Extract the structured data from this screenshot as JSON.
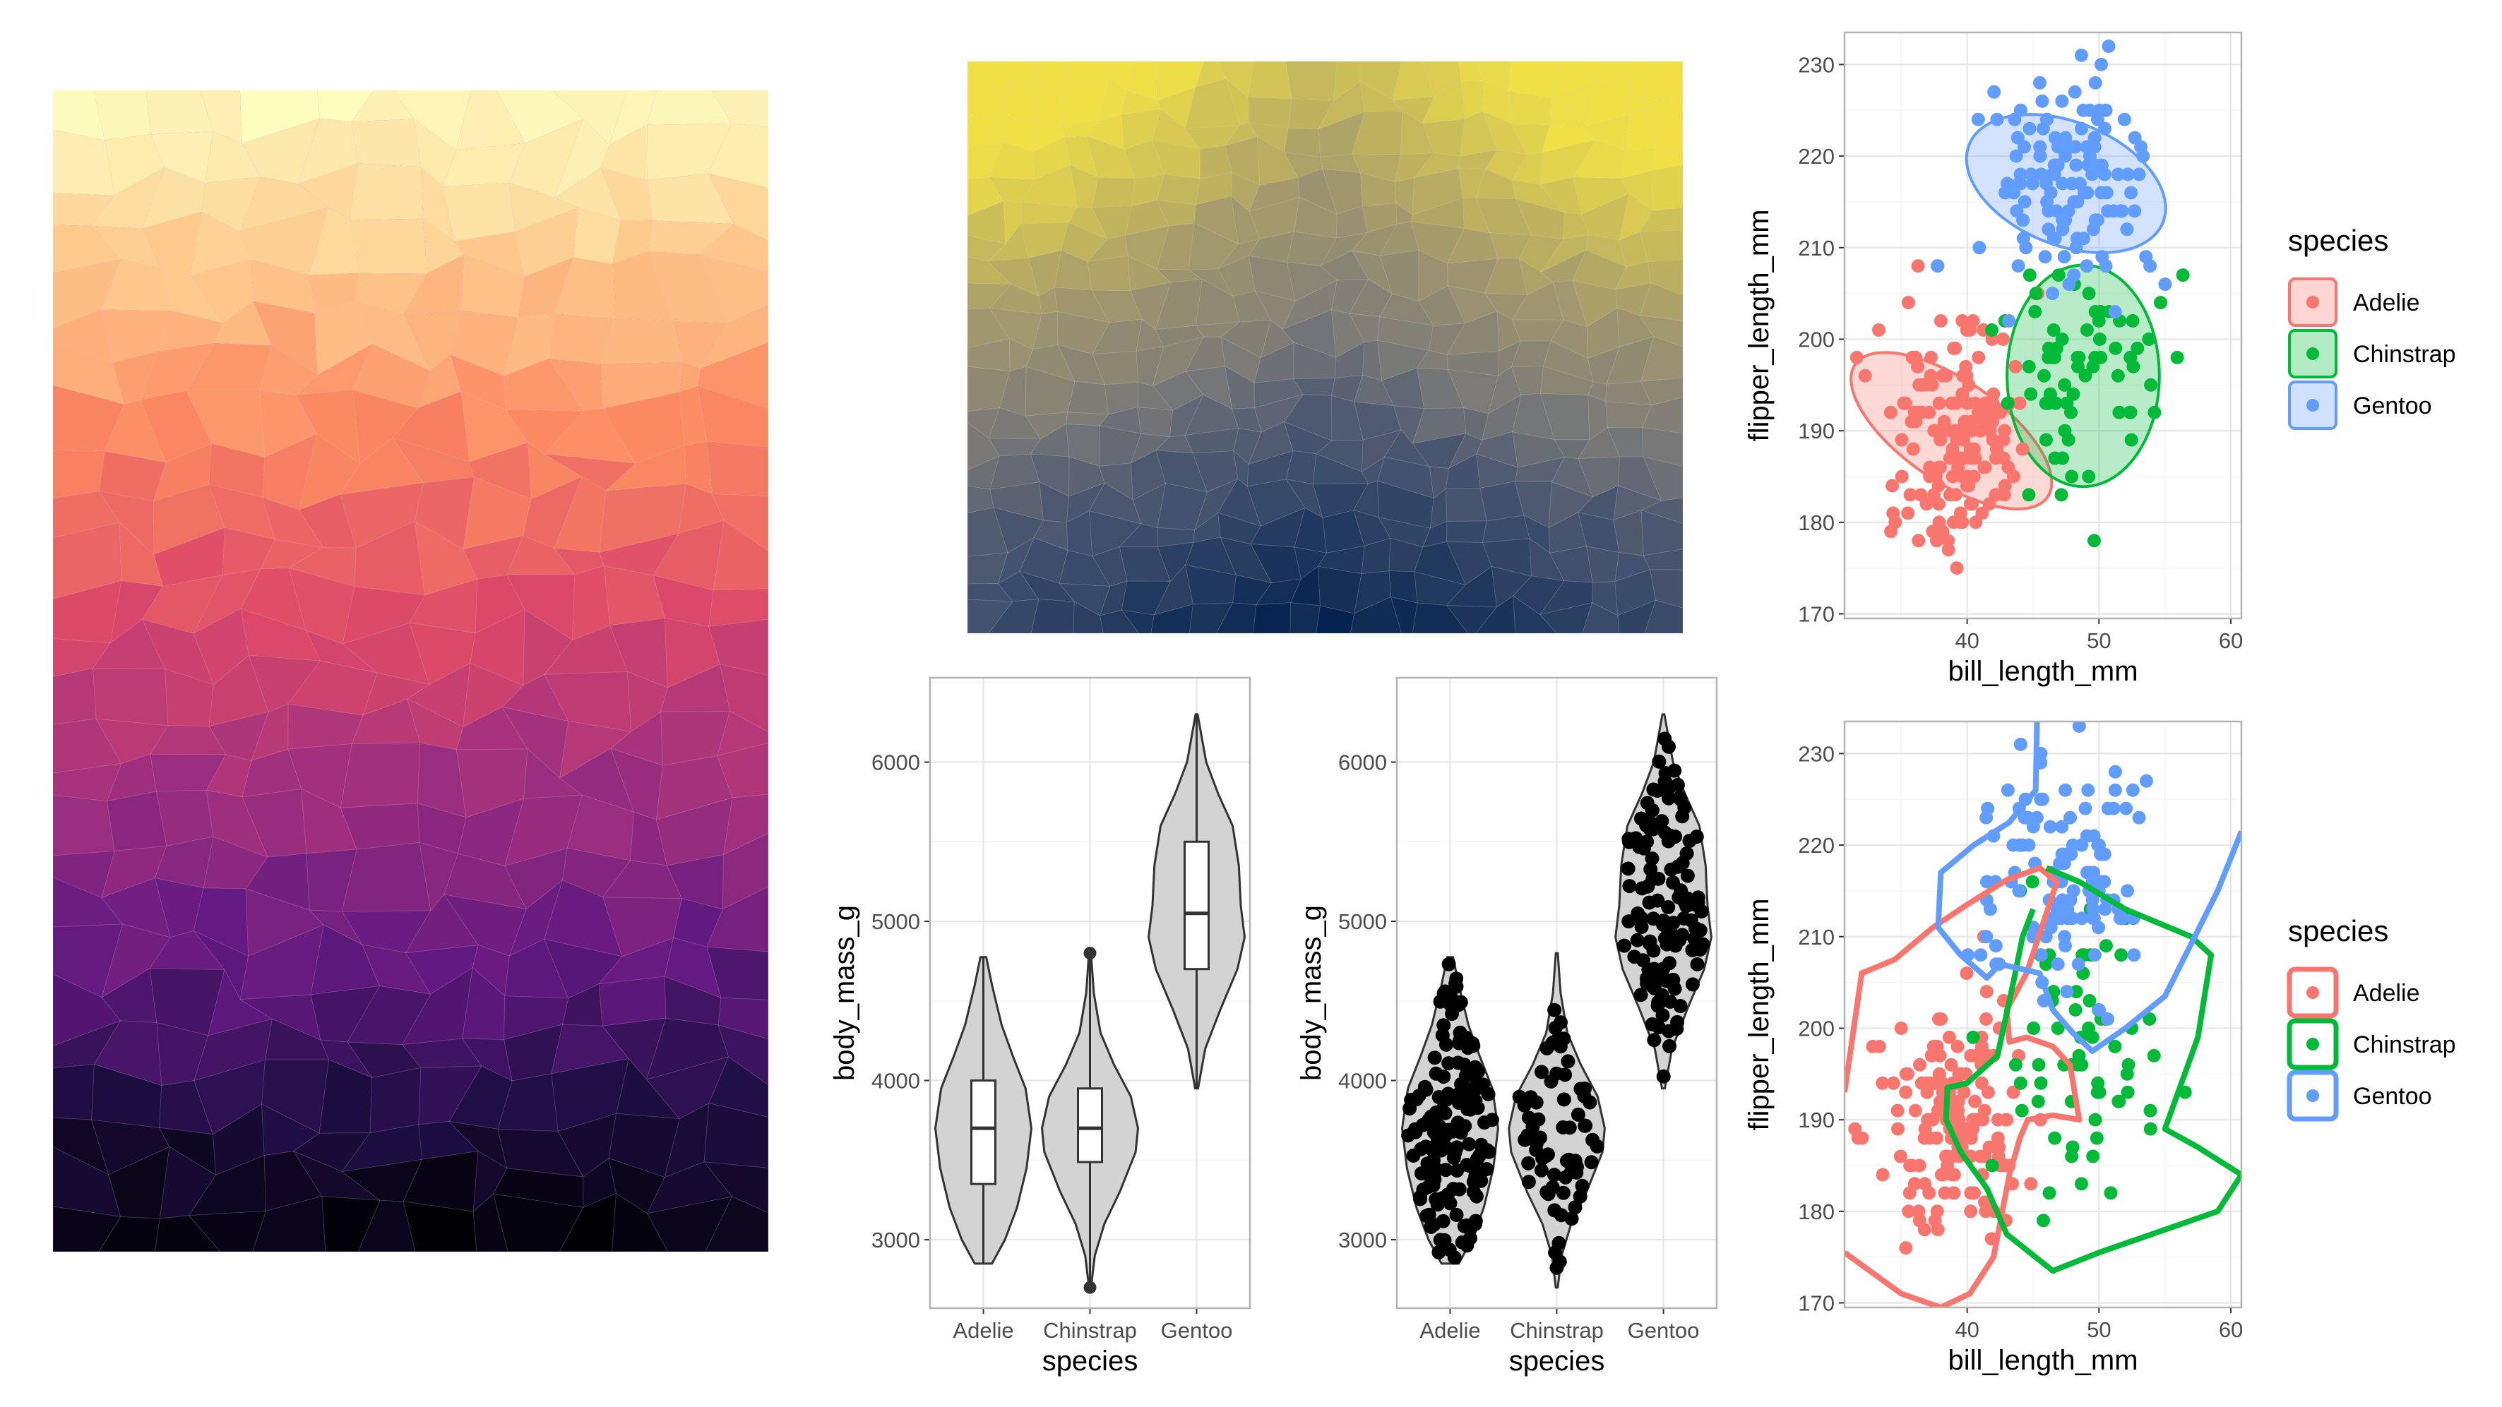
{
  "colors": {
    "adelie": "#F8766D",
    "chinstrap": "#00BA38",
    "gentoo": "#619CFF",
    "panel_border": "#B3B3B3",
    "grid_major": "#E6E6E6",
    "grid_minor": "#F2F2F2",
    "violin_fill": "#D3D3D3"
  },
  "icons": {
    "legend_key": "point-with-box",
    "mosaic_left": "voronoi-magma-gradient",
    "mosaic_top": "voronoi-cividis-gradient"
  },
  "mosaics": [
    {
      "palette": "magma",
      "direction": "light-top-to-dark-bottom"
    },
    {
      "palette": "cividis",
      "direction": "yellow-top-corners-to-navy-bottom"
    }
  ],
  "chart_data": [
    {
      "type": "violin",
      "xlabel": "species",
      "ylabel": "body_mass_g",
      "categories": [
        "Adelie",
        "Chinstrap",
        "Gentoo"
      ],
      "ylim": [
        2570,
        6530
      ],
      "yticks": [
        3000,
        4000,
        5000,
        6000
      ],
      "grid": true,
      "violins": [
        {
          "name": "Adelie",
          "min": 2850,
          "q1": 3350,
          "median": 3700,
          "q3": 4000,
          "max": 4775,
          "density": [
            [
              2850,
              0.18
            ],
            [
              3000,
              0.45
            ],
            [
              3200,
              0.7
            ],
            [
              3450,
              0.9
            ],
            [
              3700,
              1.0
            ],
            [
              3950,
              0.88
            ],
            [
              4150,
              0.62
            ],
            [
              4350,
              0.38
            ],
            [
              4600,
              0.18
            ],
            [
              4775,
              0.06
            ]
          ]
        },
        {
          "name": "Chinstrap",
          "min": 2700,
          "q1": 3488,
          "median": 3700,
          "q3": 3950,
          "max": 4800,
          "density": [
            [
              2700,
              0.02
            ],
            [
              2900,
              0.1
            ],
            [
              3100,
              0.3
            ],
            [
              3300,
              0.62
            ],
            [
              3550,
              0.95
            ],
            [
              3700,
              1.0
            ],
            [
              3900,
              0.85
            ],
            [
              4100,
              0.5
            ],
            [
              4300,
              0.22
            ],
            [
              4550,
              0.08
            ],
            [
              4800,
              0.02
            ]
          ]
        },
        {
          "name": "Gentoo",
          "min": 3950,
          "q1": 4700,
          "median": 5050,
          "q3": 5500,
          "max": 6300,
          "density": [
            [
              3950,
              0.03
            ],
            [
              4200,
              0.18
            ],
            [
              4450,
              0.5
            ],
            [
              4700,
              0.85
            ],
            [
              4900,
              1.0
            ],
            [
              5100,
              0.92
            ],
            [
              5350,
              0.88
            ],
            [
              5600,
              0.75
            ],
            [
              5800,
              0.45
            ],
            [
              6000,
              0.2
            ],
            [
              6300,
              0.02
            ]
          ]
        }
      ],
      "outliers": [
        {
          "name": "Chinstrap",
          "value": 2700
        },
        {
          "name": "Chinstrap",
          "value": 4800
        }
      ]
    },
    {
      "type": "violin",
      "xlabel": "species",
      "ylabel": "body_mass_g",
      "categories": [
        "Adelie",
        "Chinstrap",
        "Gentoo"
      ],
      "ylim": [
        2570,
        6530
      ],
      "yticks": [
        3000,
        4000,
        5000,
        6000
      ],
      "grid": true,
      "violins": [
        {
          "name": "Adelie",
          "min": 2850,
          "max": 4775,
          "n": 151,
          "density": [
            [
              2850,
              0.18
            ],
            [
              3000,
              0.45
            ],
            [
              3200,
              0.7
            ],
            [
              3450,
              0.9
            ],
            [
              3700,
              1.0
            ],
            [
              3950,
              0.88
            ],
            [
              4150,
              0.62
            ],
            [
              4350,
              0.38
            ],
            [
              4600,
              0.18
            ],
            [
              4775,
              0.06
            ]
          ]
        },
        {
          "name": "Chinstrap",
          "min": 2700,
          "max": 4800,
          "n": 68,
          "density": [
            [
              2700,
              0.02
            ],
            [
              2900,
              0.1
            ],
            [
              3100,
              0.3
            ],
            [
              3300,
              0.62
            ],
            [
              3550,
              0.95
            ],
            [
              3700,
              1.0
            ],
            [
              3900,
              0.85
            ],
            [
              4100,
              0.5
            ],
            [
              4300,
              0.22
            ],
            [
              4550,
              0.08
            ],
            [
              4800,
              0.02
            ]
          ]
        },
        {
          "name": "Gentoo",
          "min": 3950,
          "max": 6300,
          "n": 123,
          "density": [
            [
              3950,
              0.03
            ],
            [
              4200,
              0.18
            ],
            [
              4450,
              0.5
            ],
            [
              4700,
              0.85
            ],
            [
              4900,
              1.0
            ],
            [
              5100,
              0.92
            ],
            [
              5350,
              0.88
            ],
            [
              5600,
              0.75
            ],
            [
              5800,
              0.45
            ],
            [
              6000,
              0.2
            ],
            [
              6300,
              0.02
            ]
          ]
        }
      ]
    },
    {
      "type": "scatter",
      "xlabel": "bill_length_mm",
      "ylabel": "flipper_length_mm",
      "xlim": [
        30.7,
        60.8
      ],
      "ylim": [
        169.5,
        233.5
      ],
      "xticks": [
        40,
        50,
        60
      ],
      "yticks": [
        170,
        180,
        190,
        200,
        210,
        220,
        230
      ],
      "grid": true,
      "overlay": "ellipse",
      "legend": {
        "title": "species",
        "position": "right",
        "labels": [
          "Adelie",
          "Chinstrap",
          "Gentoo"
        ]
      },
      "series": [
        {
          "name": "Adelie",
          "cx": 38.8,
          "cy": 190,
          "sx": 2.65,
          "sy": 6.5,
          "n": 151
        },
        {
          "name": "Chinstrap",
          "cx": 48.8,
          "cy": 196,
          "sx": 3.3,
          "sy": 7.1,
          "n": 68
        },
        {
          "name": "Gentoo",
          "cx": 47.5,
          "cy": 217,
          "sx": 3.1,
          "sy": 6.5,
          "n": 123
        }
      ],
      "ellipses": [
        {
          "name": "Adelie",
          "cx": 38.8,
          "cy": 190,
          "rx": 8.5,
          "ry": 19,
          "rot": -40
        },
        {
          "name": "Chinstrap",
          "cx": 48.8,
          "cy": 196,
          "rx": 10.5,
          "ry": 22,
          "rot": 0
        },
        {
          "name": "Gentoo",
          "cx": 47.5,
          "cy": 217,
          "rx": 11,
          "ry": 16,
          "rot": -45
        }
      ]
    },
    {
      "type": "scatter",
      "xlabel": "bill_length_mm",
      "ylabel": "flipper_length_mm",
      "xlim": [
        30.7,
        60.8
      ],
      "ylim": [
        169.5,
        233.5
      ],
      "xticks": [
        40,
        50,
        60
      ],
      "yticks": [
        170,
        180,
        190,
        200,
        210,
        220,
        230
      ],
      "grid": true,
      "overlay": "contour",
      "legend": {
        "title": "species",
        "position": "right",
        "labels": [
          "Adelie",
          "Chinstrap",
          "Gentoo"
        ]
      },
      "series": [
        {
          "name": "Adelie",
          "cx": 38.8,
          "cy": 190,
          "sx": 2.65,
          "sy": 6.5,
          "n": 151
        },
        {
          "name": "Chinstrap",
          "cx": 48.8,
          "cy": 196,
          "sx": 3.3,
          "sy": 7.1,
          "n": 68
        },
        {
          "name": "Gentoo",
          "cx": 47.5,
          "cy": 217,
          "sx": 3.1,
          "sy": 6.5,
          "n": 123
        }
      ],
      "contours": [
        {
          "name": "Adelie",
          "points": [
            [
              30.7,
              175.5
            ],
            [
              35,
              171
            ],
            [
              38,
              169.5
            ],
            [
              40.2,
              171
            ],
            [
              42,
              175
            ],
            [
              43.2,
              184
            ],
            [
              44,
              188
            ],
            [
              44.6,
              190
            ],
            [
              46.5,
              190.5
            ],
            [
              48.5,
              190
            ],
            [
              47.8,
              196
            ],
            [
              46.5,
              198
            ],
            [
              44.5,
              199
            ],
            [
              43.2,
              198.5
            ],
            [
              43,
              202
            ],
            [
              44.5,
              206
            ],
            [
              46,
              212.5
            ],
            [
              46.8,
              216
            ],
            [
              45.5,
              217.5
            ],
            [
              43,
              216.2
            ],
            [
              40,
              213.5
            ],
            [
              37.4,
              211
            ],
            [
              34.5,
              207.5
            ],
            [
              32,
              206
            ],
            [
              30.7,
              193
            ]
          ]
        },
        {
          "name": "Chinstrap",
          "points": [
            [
              46,
              217.5
            ],
            [
              48.5,
              216
            ],
            [
              52,
              213
            ],
            [
              57,
              210
            ],
            [
              58.5,
              208
            ],
            [
              57.5,
              199
            ],
            [
              55,
              189
            ],
            [
              57.5,
              187
            ],
            [
              60.8,
              184
            ],
            [
              59,
              180
            ],
            [
              55,
              178
            ],
            [
              50,
              175.5
            ],
            [
              46.5,
              173.5
            ],
            [
              43,
              177.5
            ],
            [
              41.5,
              182.5
            ],
            [
              39.5,
              186.5
            ],
            [
              38.4,
              190
            ],
            [
              38.5,
              193.5
            ],
            [
              40,
              194
            ],
            [
              42.3,
              197
            ],
            [
              43.5,
              205
            ],
            [
              44.2,
              210
            ],
            [
              45,
              213
            ]
          ]
        },
        {
          "name": "Gentoo",
          "points": [
            [
              45.3,
              233.5
            ],
            [
              45.2,
              226
            ],
            [
              43.2,
              222.5
            ],
            [
              40.5,
              220
            ],
            [
              38,
              217
            ],
            [
              37.8,
              211
            ],
            [
              39.5,
              208
            ],
            [
              41.5,
              205.5
            ],
            [
              42.5,
              207
            ],
            [
              45.5,
              206
            ],
            [
              46.5,
              202
            ],
            [
              48,
              199.5
            ],
            [
              49.5,
              197.5
            ],
            [
              52,
              200
            ],
            [
              55,
              203.5
            ],
            [
              59,
              215
            ],
            [
              60.8,
              221.5
            ]
          ]
        }
      ]
    }
  ]
}
